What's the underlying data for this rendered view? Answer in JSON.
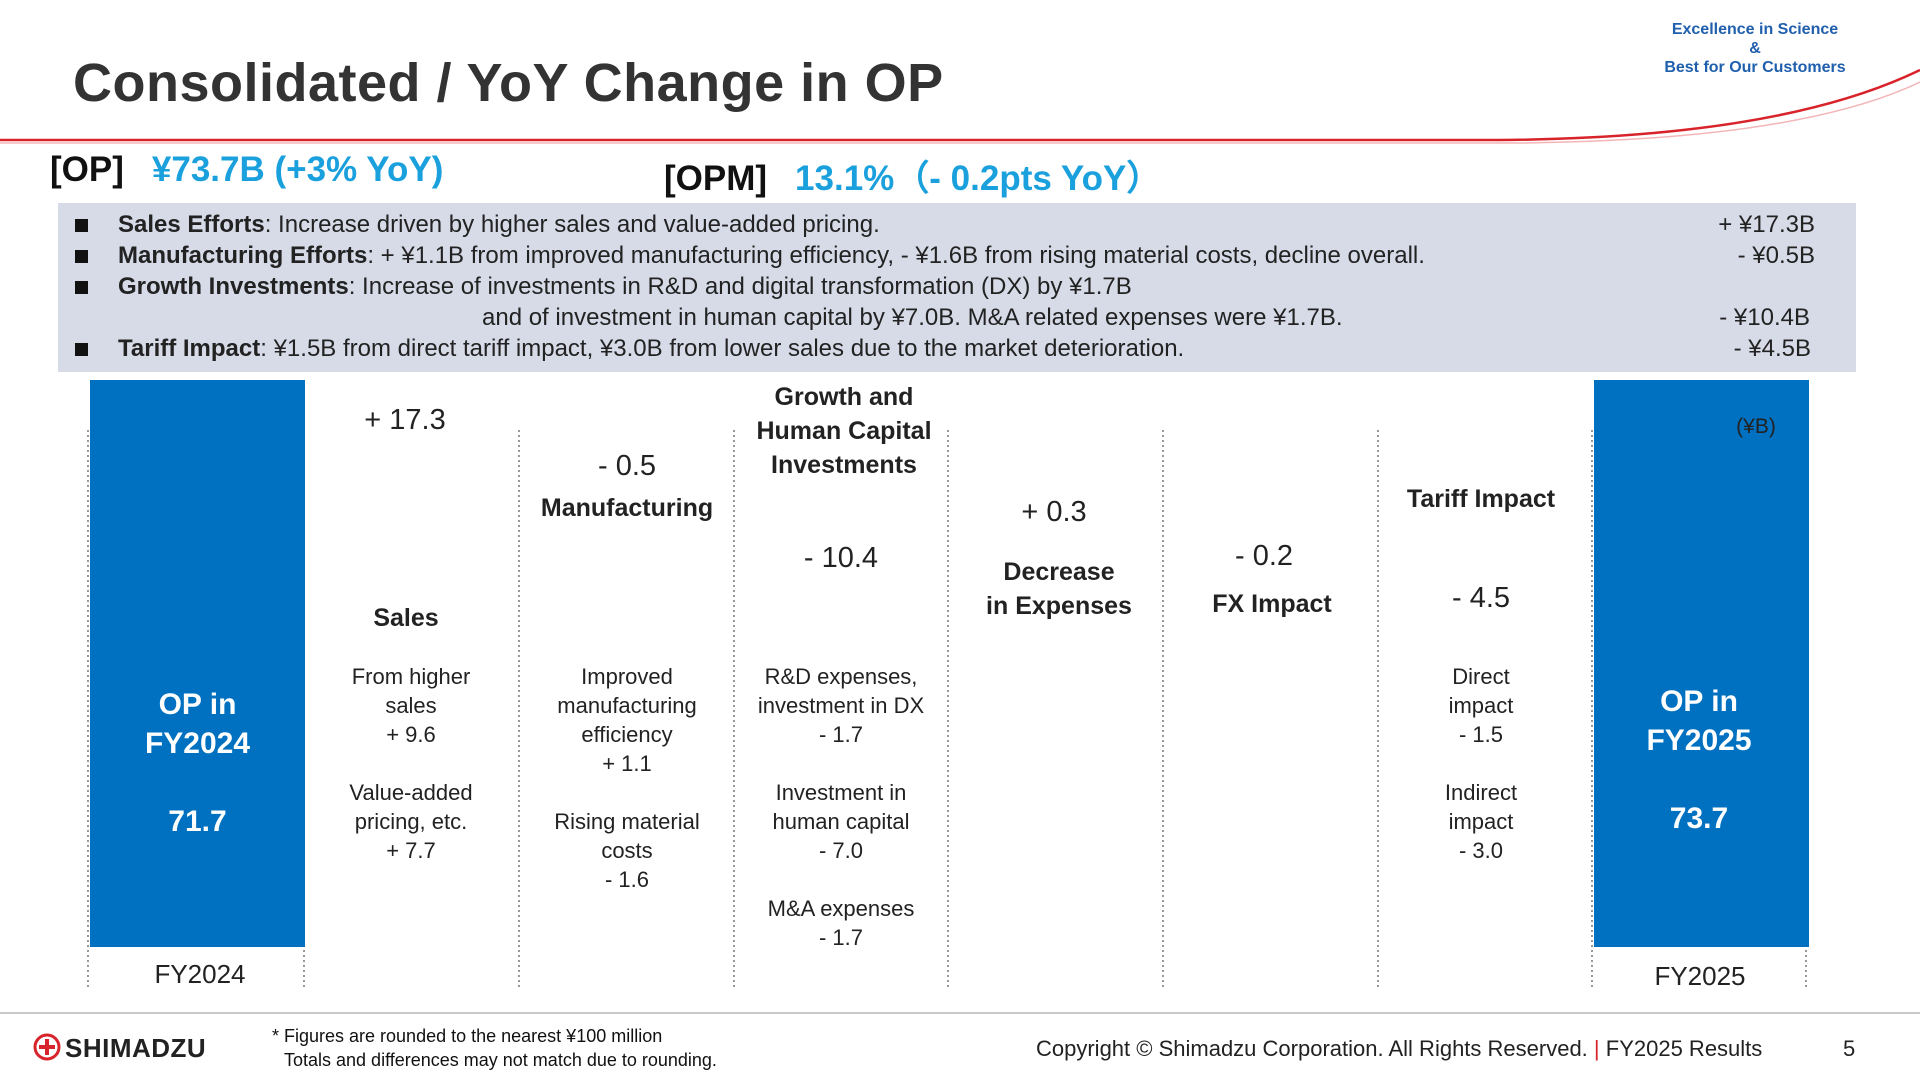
{
  "header": {
    "title": "Consolidated / YoY Change in OP",
    "tagline_line1": "Excellence in Science",
    "tagline_line2": "&",
    "tagline_line3": "Best for Our Customers"
  },
  "summary": {
    "op_label": "[OP]",
    "op_value": "¥73.7B (+3% YoY)",
    "opm_label": "[OPM]",
    "opm_value": "13.1%（- 0.2pts YoY）"
  },
  "bullets": [
    {
      "bold": "Sales Efforts",
      "text": ": Increase driven by higher sales and value-added pricing.",
      "amount": "+ ¥17.3B"
    },
    {
      "bold": "Manufacturing Efforts",
      "text": ": + ¥1.1B from improved manufacturing efficiency, - ¥1.6B from rising material costs, decline overall.",
      "amount": "- ¥0.5B"
    },
    {
      "bold": "Growth Investments",
      "text": ": Increase of investments in R&D and digital transformation (DX) by ¥1.7B",
      "amount": ""
    },
    {
      "bold": "",
      "text": "and of investment in human capital by ¥7.0B. M&A related expenses were ¥1.7B.",
      "amount": "- ¥10.4B"
    },
    {
      "bold": "Tariff Impact",
      "text": ": ¥1.5B from direct tariff impact, ¥3.0B from lower sales due to the market deterioration.",
      "amount": "- ¥4.5B"
    }
  ],
  "chart_data": {
    "type": "waterfall",
    "unit": "(¥B)",
    "steps": [
      {
        "name": "OP in FY2024",
        "kind": "total",
        "value": 71.7,
        "value_label": "71.7",
        "category": "FY2024",
        "title_line1": "OP in",
        "title_line2": "FY2024",
        "color": "#0070c0",
        "details": []
      },
      {
        "name": "Sales",
        "kind": "delta",
        "value": 17.3,
        "value_label": "+ 17.3",
        "color": "#76923c",
        "details": [
          "From higher",
          "sales",
          "+ 9.6",
          "",
          "Value-added",
          "pricing, etc.",
          "+ 7.7"
        ]
      },
      {
        "name": "Manufacturing",
        "kind": "delta",
        "value": -0.5,
        "value_label": "- 0.5",
        "color": "#c5d9f1",
        "details": [
          "Improved",
          "manufacturing",
          "efficiency",
          "+ 1.1",
          "",
          "Rising material",
          "costs",
          "- 1.6"
        ]
      },
      {
        "name": "Growth and Human Capital Investments",
        "kind": "delta",
        "value": -10.4,
        "value_label": "- 10.4",
        "color": "#c5d9f1",
        "title_lines": [
          "Growth and",
          "Human Capital",
          "Investments"
        ],
        "details": [
          "R&D expenses,",
          "investment in DX",
          "- 1.7",
          "",
          "Investment in",
          "human capital",
          "- 7.0",
          "",
          "M&A expenses",
          "- 1.7"
        ]
      },
      {
        "name": "Decrease in Expenses",
        "kind": "delta",
        "value": 0.3,
        "value_label": "+ 0.3",
        "color": "#2e75b6",
        "title_lines": [
          "Decrease",
          "in Expenses"
        ],
        "details": []
      },
      {
        "name": "FX Impact",
        "kind": "delta",
        "value": -0.2,
        "value_label": "- 0.2",
        "color": "#c5d9f1",
        "details": []
      },
      {
        "name": "Tariff Impact",
        "kind": "delta",
        "value": -4.5,
        "value_label": "- 4.5",
        "color": "#00b0f0",
        "details": [
          "Direct",
          "impact",
          "- 1.5",
          "",
          "Indirect",
          "impact",
          "- 3.0"
        ]
      },
      {
        "name": "OP in FY2025",
        "kind": "total",
        "value": 73.7,
        "value_label": "73.7",
        "category": "FY2025",
        "title_line1": "OP in",
        "title_line2": "FY2025",
        "color": "#0070c0",
        "details": []
      }
    ]
  },
  "footer": {
    "logo": "SHIMADZU",
    "footnote_line1": "* Figures are rounded to the nearest ¥100 million",
    "footnote_line2": "Totals and differences may not match due to rounding.",
    "copyright": "Copyright © Shimadzu Corporation. All Rights Reserved.",
    "separator": "|",
    "results": "FY2025 Results",
    "page_number": "5"
  }
}
